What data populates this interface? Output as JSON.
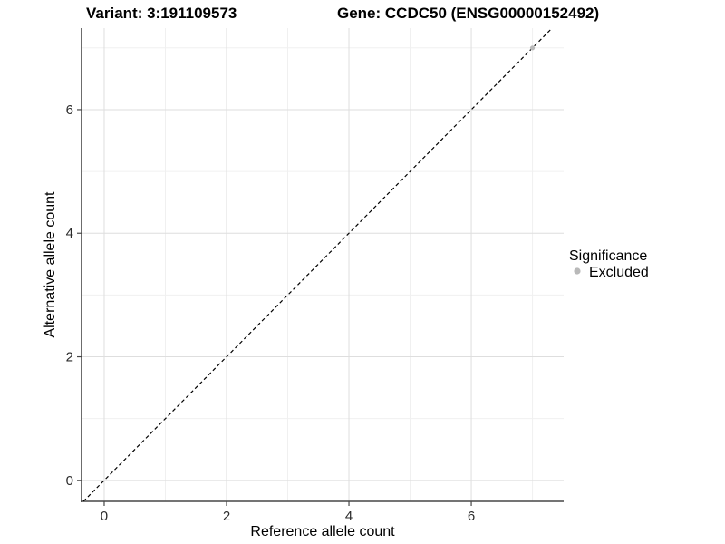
{
  "header": {
    "variant_title": "Variant: 3:191109573",
    "gene_title": "Gene: CCDC50 (ENSG00000152492)"
  },
  "chart_data": {
    "type": "scatter",
    "titles": [
      "Variant: 3:191109573",
      "Gene: CCDC50 (ENSG00000152492)"
    ],
    "xlabel": "Reference allele count",
    "ylabel": "Alternative allele count",
    "xlim": [
      -0.37,
      7.51
    ],
    "ylim": [
      -0.34,
      7.32
    ],
    "x_ticks": [
      0,
      2,
      4,
      6
    ],
    "y_ticks": [
      0,
      2,
      4,
      6
    ],
    "x_minor_ticks": [
      1,
      3,
      5,
      7
    ],
    "y_minor_ticks": [
      1,
      3,
      5,
      7
    ],
    "grid": true,
    "reference_line": {
      "type": "abline",
      "slope": 1,
      "intercept": 0,
      "style": "dashed",
      "color": "#000000"
    },
    "series": [
      {
        "name": "Excluded",
        "color": "#b9b9b9",
        "points": [
          [
            7,
            7
          ]
        ]
      }
    ],
    "legend": {
      "position": "right",
      "title": "Significance",
      "items": [
        {
          "label": "Excluded",
          "color": "#b9b9b9"
        }
      ]
    }
  }
}
